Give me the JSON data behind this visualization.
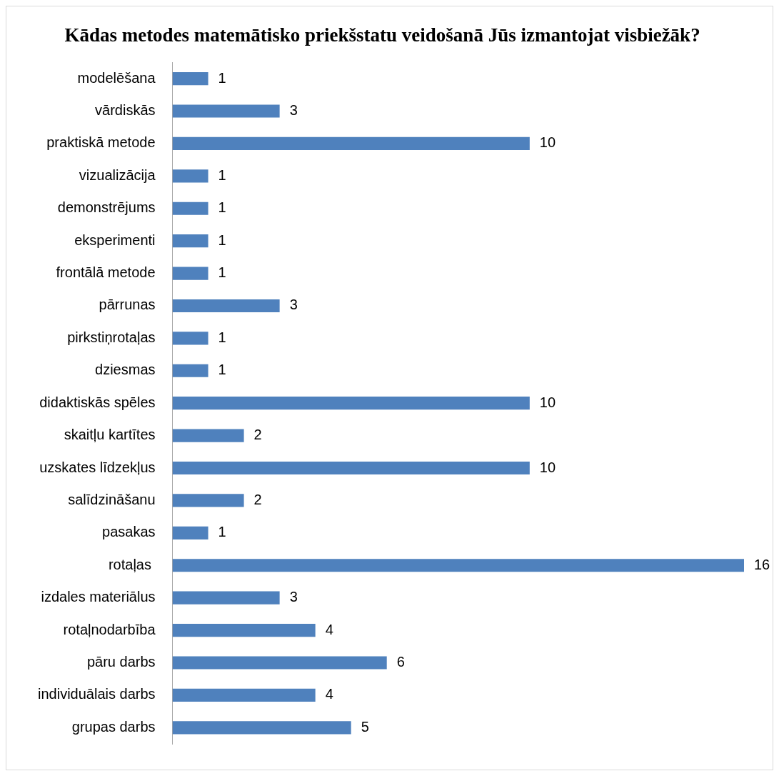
{
  "chart_data": {
    "type": "bar",
    "orientation": "horizontal",
    "title": "Kādas metodes matemātisko priekšstatu veidošanā Jūs izmantojat visbiežāk?",
    "categories": [
      "modelēšana",
      "vārdiskās",
      "praktiskā metode",
      "vizualizācija",
      "demonstrējums",
      "eksperimenti",
      "frontālā metode",
      "pārrunas",
      "pirkstiņrotaļas",
      "dziesmas",
      "didaktiskās spēles",
      "skaitļu kartītes",
      "uzskates līdzekļus",
      "salīdzināšanu",
      "pasakas",
      "rotaļas ",
      "izdales materiālus",
      "rotaļnodarbība",
      "pāru darbs",
      "individuālais darbs",
      "grupas darbs"
    ],
    "values": [
      1,
      3,
      10,
      1,
      1,
      1,
      1,
      3,
      1,
      1,
      10,
      2,
      10,
      2,
      1,
      16,
      3,
      4,
      6,
      4,
      5
    ],
    "color": "#4f81bd",
    "data_labels": true
  }
}
